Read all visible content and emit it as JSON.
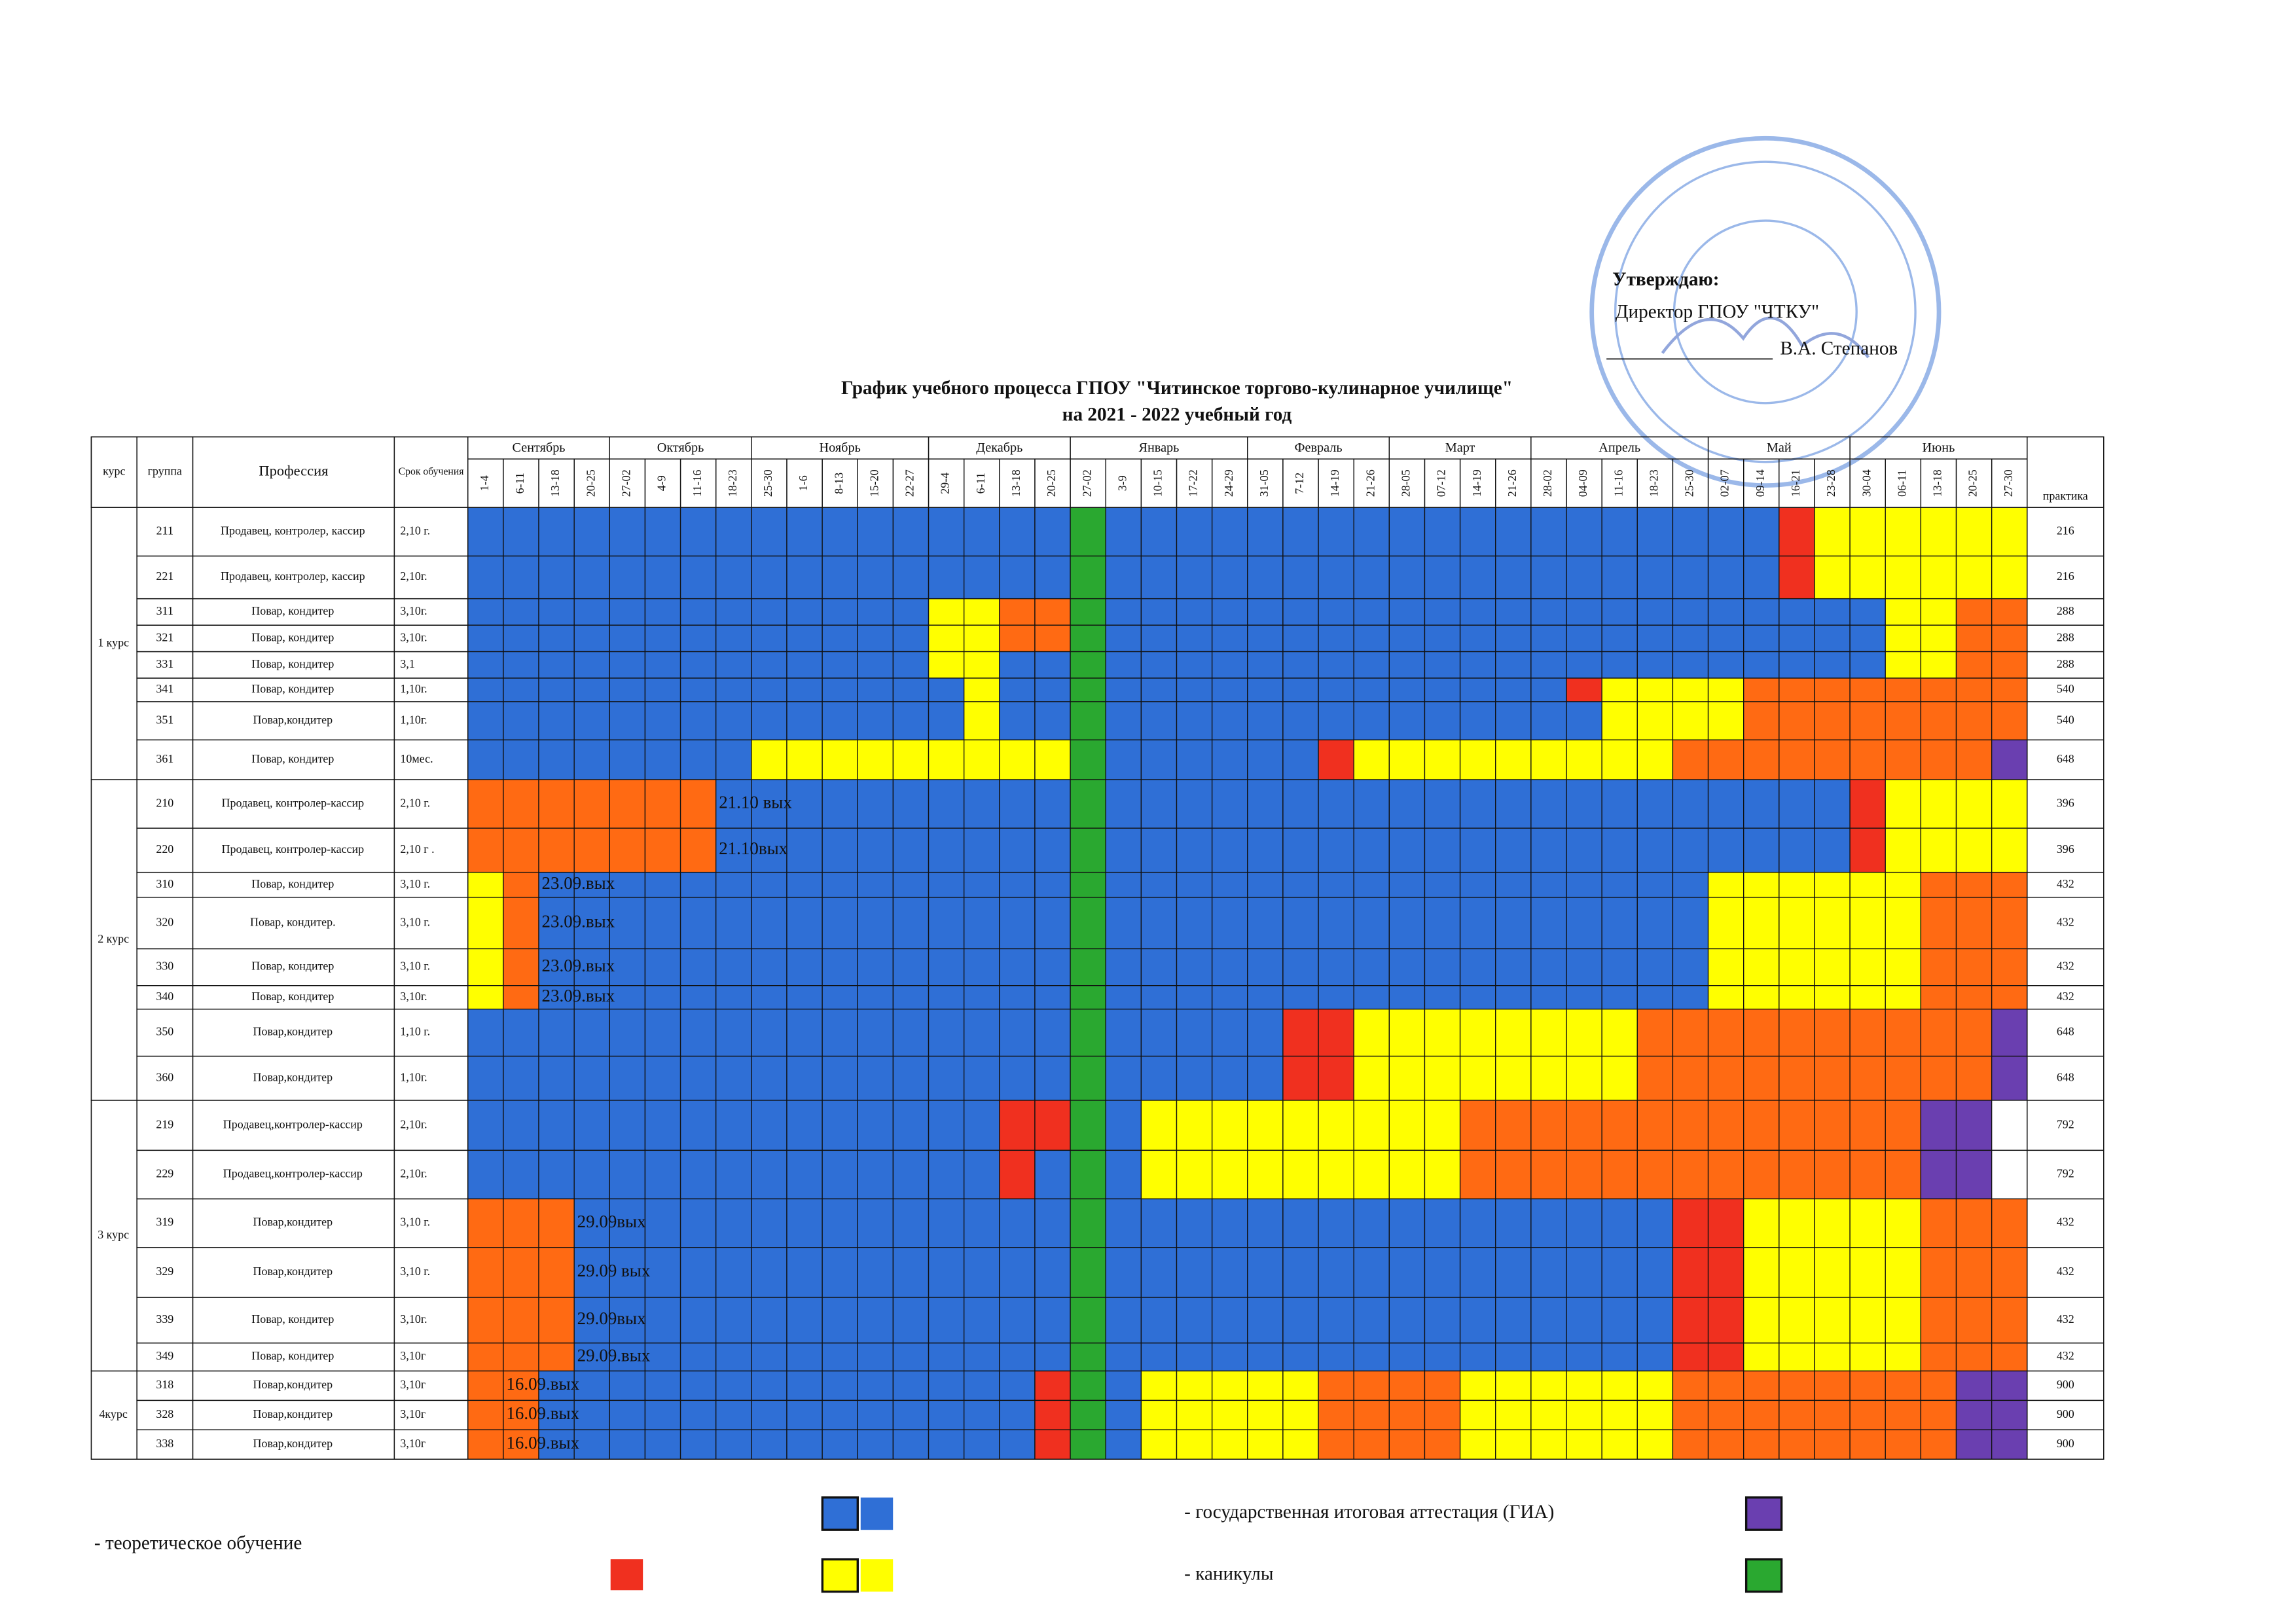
{
  "approval": {
    "title": "Утверждаю:",
    "position": "Директор ГПОУ \"ЧТКУ\"",
    "signature": "В.А. Степанов"
  },
  "header": {
    "title": "График учебного процесса ГПОУ \"Читинское торгово-кулинарное училище\"",
    "subtitle": "на 2021 - 2022 учебный год"
  },
  "table": {
    "columns": {
      "course": "курс",
      "group": "группа",
      "profession": "Профессия",
      "term": "Срок обучения",
      "practice": "практика"
    },
    "months": [
      {
        "name": "Сентябрь",
        "weeks": [
          "1-4",
          "6-11",
          "13-18",
          "20-25"
        ]
      },
      {
        "name": "Октябрь",
        "weeks": [
          "27-02",
          "4-9",
          "11-16",
          "18-23"
        ]
      },
      {
        "name": "Ноябрь",
        "weeks": [
          "25-30",
          "1-6",
          "8-13",
          "15-20",
          "22-27"
        ]
      },
      {
        "name": "Декабрь",
        "weeks": [
          "29-4",
          "6-11",
          "13-18",
          "20-25"
        ]
      },
      {
        "name": "Январь",
        "weeks": [
          "27-02",
          "3-9",
          "10-15",
          "17-22",
          "24-29"
        ]
      },
      {
        "name": "Февраль",
        "weeks": [
          "31-05",
          "7-12",
          "14-19",
          "21-26"
        ]
      },
      {
        "name": "Март",
        "weeks": [
          "28-05",
          "07-12",
          "14-19",
          "21-26"
        ]
      },
      {
        "name": "Апрель",
        "weeks": [
          "28-02",
          "04-09",
          "11-16",
          "18-23",
          "25-30"
        ]
      },
      {
        "name": "Май",
        "weeks": [
          "02-07",
          "09-14",
          "16-21",
          "23-28"
        ]
      },
      {
        "name": "Июнь",
        "weeks": [
          "30-04",
          "06-11",
          "13-18",
          "20-25",
          "27-30"
        ]
      }
    ],
    "courses": [
      {
        "course": "1 курс",
        "rows": [
          {
            "group": "211",
            "profession": "Продавец, контролер, кассир",
            "term": "2,10 г.",
            "practice": 216
          },
          {
            "group": "221",
            "profession": "Продавец, контролер, кассир",
            "term": "2,10г.",
            "practice": 216
          },
          {
            "group": "311",
            "profession": "Повар, кондитер",
            "term": "3,10г.",
            "practice": 288
          },
          {
            "group": "321",
            "profession": "Повар, кондитер",
            "term": "3,10г.",
            "practice": 288
          },
          {
            "group": "331",
            "profession": "Повар, кондитер",
            "term": "3,1",
            "practice": 288
          },
          {
            "group": "341",
            "profession": "Повар, кондитер",
            "term": "1,10г.",
            "practice": 540
          },
          {
            "group": "351",
            "profession": "Повар,кондитер",
            "term": "1,10г.",
            "practice": 540
          },
          {
            "group": "361",
            "profession": "Повар, кондитер",
            "term": "10мес.",
            "practice": 648
          }
        ]
      },
      {
        "course": "2 курс",
        "rows": [
          {
            "group": "210",
            "profession": "Продавец, контролер-кассир",
            "term": "2,10 г.",
            "practice": 396,
            "note": "21.10 вых"
          },
          {
            "group": "220",
            "profession": "Продавец, контролер-кассир",
            "term": "2,10 г .",
            "practice": 396,
            "note": "21.10вых"
          },
          {
            "group": "310",
            "profession": "Повар, кондитер",
            "term": "3,10 г.",
            "practice": 432,
            "note": "23.09.вых"
          },
          {
            "group": "320",
            "profession": "Повар, кондитер.",
            "term": "3,10 г.",
            "practice": 432,
            "note": "23.09.вых"
          },
          {
            "group": "330",
            "profession": "Повар, кондитер",
            "term": "3,10 г.",
            "practice": 432,
            "note": "23.09.вых"
          },
          {
            "group": "340",
            "profession": "Повар, кондитер",
            "term": "3,10г.",
            "practice": 432,
            "note": "23.09.вых"
          },
          {
            "group": "350",
            "profession": "Повар,кондитер",
            "term": "1,10 г.",
            "practice": 648
          },
          {
            "group": "360",
            "profession": "Повар,кондитер",
            "term": "1,10г.",
            "practice": 648
          }
        ]
      },
      {
        "course": "3 курс",
        "rows": [
          {
            "group": "219",
            "profession": "Продавец,контролер-кассир",
            "term": "2,10г.",
            "practice": 792
          },
          {
            "group": "229",
            "profession": "Продавец,контролер-кассир",
            "term": "2,10г.",
            "practice": 792
          },
          {
            "group": "319",
            "profession": "Повар,кондитер",
            "term": "3,10 г.",
            "practice": 432,
            "note": "29.09вых"
          },
          {
            "group": "329",
            "profession": "Повар,кондитер",
            "term": "3,10 г.",
            "practice": 432,
            "note": "29.09 вых"
          },
          {
            "group": "339",
            "profession": "Повар, кондитер",
            "term": "3,10г.",
            "practice": 432,
            "note": "29.09вых"
          },
          {
            "group": "349",
            "profession": "Повар, кондитер",
            "term": "3,10г",
            "practice": 432,
            "note": "29.09.вых"
          }
        ]
      },
      {
        "course": "4курс",
        "rows": [
          {
            "group": "318",
            "profession": "Повар,кондитер",
            "term": "3,10г",
            "practice": 900,
            "note": "16.09.вых"
          },
          {
            "group": "328",
            "profession": "Повар,кондитер",
            "term": "3,10г",
            "practice": 900,
            "note": "16.09.вых"
          },
          {
            "group": "338",
            "profession": "Повар,кондитер",
            "term": "3,10г",
            "practice": 900,
            "note": "16.09.вых"
          }
        ]
      }
    ]
  },
  "legend": {
    "theory": "- теоретическое обучение",
    "gia": "- государственная итоговая аттестация (ГИА)",
    "holidays": "- каникулы"
  }
}
